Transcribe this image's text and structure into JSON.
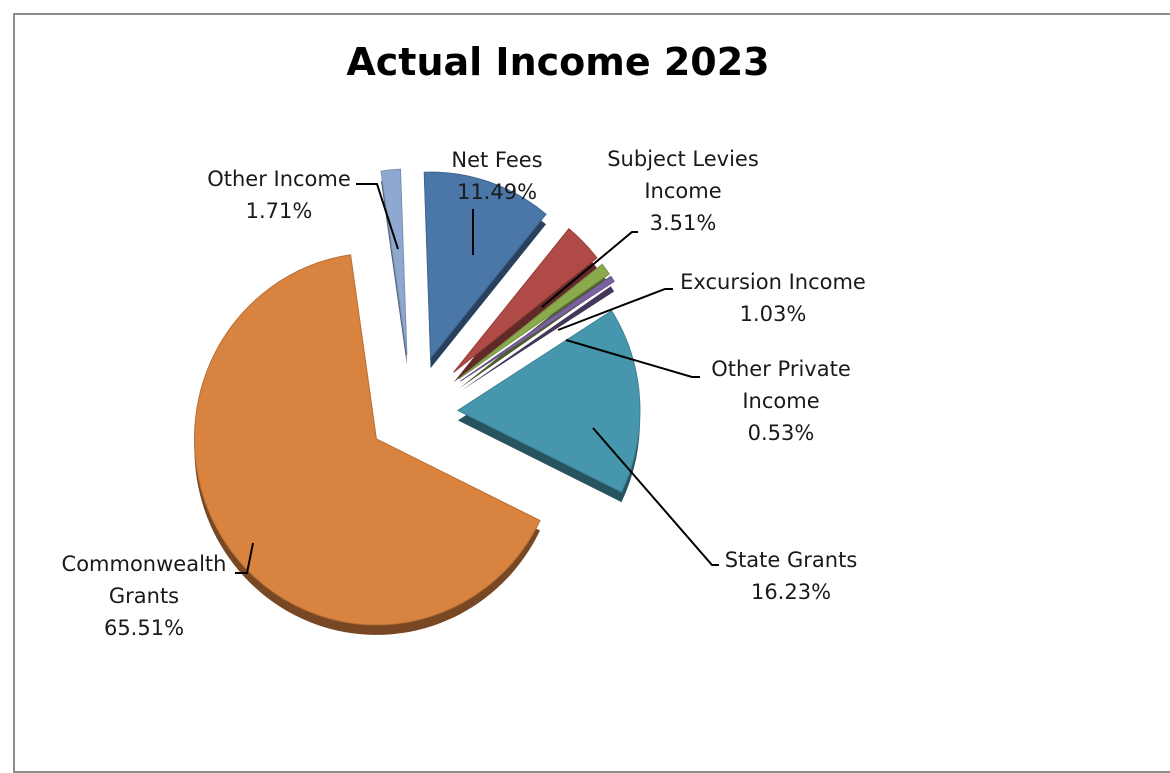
{
  "chart_data": {
    "type": "pie",
    "title": "Actual Income 2023",
    "style": "3d-exploded",
    "slices": [
      {
        "name": "Net Fees",
        "value": 11.49,
        "label": [
          "Net Fees",
          "11.49%"
        ],
        "color": "#4a76a8"
      },
      {
        "name": "Subject Levies Income",
        "value": 3.51,
        "label": [
          "Subject Levies",
          "Income",
          "3.51%"
        ],
        "color": "#b04a47"
      },
      {
        "name": "Excursion Income",
        "value": 1.03,
        "label": [
          "Excursion Income",
          "1.03%"
        ],
        "color": "#8aaa4b"
      },
      {
        "name": "Other Private Income",
        "value": 0.53,
        "label": [
          "Other Private",
          "Income",
          "0.53%"
        ],
        "color": "#7a62a0"
      },
      {
        "name": "State Grants",
        "value": 16.23,
        "label": [
          "State Grants",
          "16.23%"
        ],
        "color": "#4697ad"
      },
      {
        "name": "Commonwealth Grants",
        "value": 65.51,
        "label": [
          "Commonwealth",
          "Grants",
          "65.51%"
        ],
        "color": "#d8833f"
      },
      {
        "name": "Other Income",
        "value": 1.71,
        "label": [
          "Other Income",
          "1.71%"
        ],
        "color": "#8ea8cf"
      }
    ]
  }
}
